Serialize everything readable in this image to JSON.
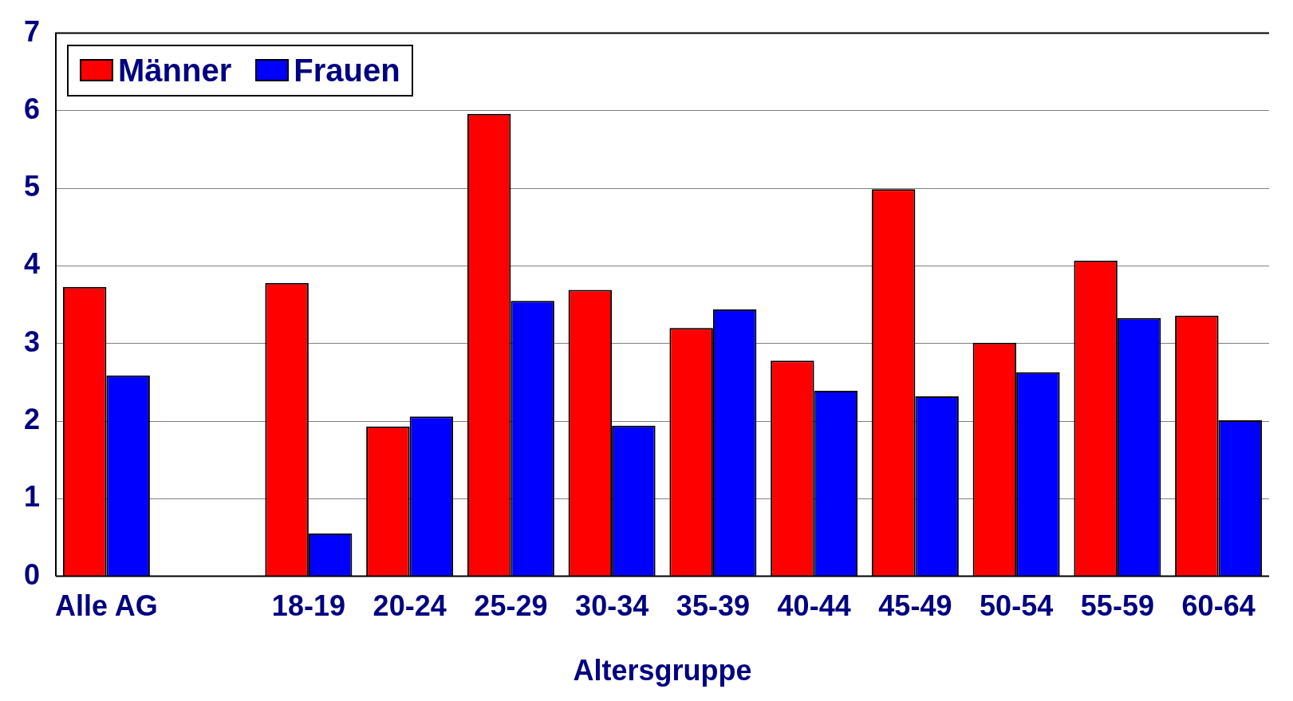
{
  "chart_data": {
    "type": "bar",
    "xlabel": "Altersgruppe",
    "categories": [
      "Alle AG",
      null,
      "18-19",
      "20-24",
      "25-29",
      "30-34",
      "35-39",
      "40-44",
      "45-49",
      "50-54",
      "55-59",
      "60-64"
    ],
    "series": [
      {
        "name": "Männer",
        "color": "#ff0000",
        "values": [
          3.73,
          null,
          3.78,
          1.93,
          5.96,
          3.69,
          3.2,
          2.78,
          4.99,
          3.01,
          4.07,
          3.36
        ]
      },
      {
        "name": "Frauen",
        "color": "#0000ff",
        "values": [
          2.59,
          null,
          0.55,
          2.06,
          3.55,
          1.94,
          3.44,
          2.39,
          2.32,
          2.63,
          3.33,
          2.01
        ]
      }
    ],
    "ylim": [
      0,
      7
    ],
    "yticks": [
      0,
      1,
      2,
      3,
      4,
      5,
      6,
      7
    ],
    "grid": "y",
    "legend": "top left"
  }
}
